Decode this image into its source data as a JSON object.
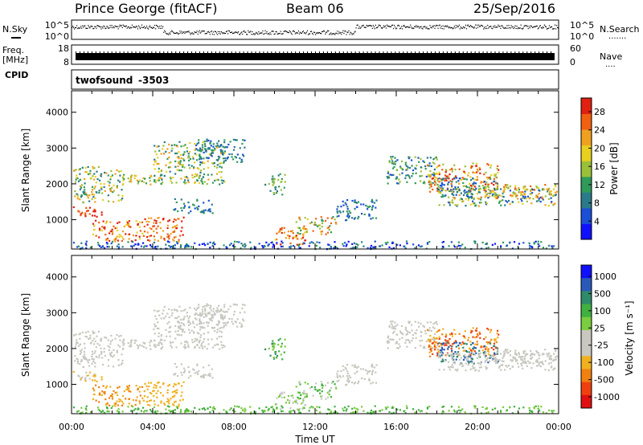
{
  "header": {
    "station": "Prince George (fitACF)",
    "beam": "Beam 06",
    "date": "25/Sep/2016"
  },
  "left_labels": {
    "nsky": "N.Sky",
    "freq_line1": "Freq.",
    "freq_line2": "[MHz]",
    "cpid": "CPID"
  },
  "right_labels": {
    "nsearch": "N.Search",
    "nsearch_dots": ".......",
    "nave": "Nave",
    "nave_dots": "...."
  },
  "noise_panel": {
    "left_ticks": [
      "10^5",
      "10^0"
    ],
    "right_ticks": [
      "10^5",
      "10^0"
    ]
  },
  "freq_panel": {
    "left_ticks": [
      "18",
      "8"
    ],
    "right_ticks": [
      "60",
      "0"
    ]
  },
  "cpid_panel": {
    "program": "twofsound",
    "id": "-3503"
  },
  "colors": {
    "power_scale": [
      "#1010ff",
      "#1a4fd6",
      "#2a7a8a",
      "#2f9a5a",
      "#9ac03a",
      "#e8d020",
      "#f0a020",
      "#f06010",
      "#e02010"
    ],
    "velocity_scale": [
      "#1010ff",
      "#2a5ab8",
      "#2f8a6a",
      "#40b040",
      "#7acc40",
      "#c8c8c0",
      "#c8c8c0",
      "#f0b020",
      "#f08010",
      "#f04010",
      "#e01010"
    ]
  },
  "chart_data": [
    {
      "type": "heatmap",
      "name": "Power",
      "xlabel": "",
      "ylabel": "Slant Range [km]",
      "x_ticks": [
        "00:00",
        "04:00",
        "08:00",
        "12:00",
        "16:00",
        "20:00",
        "00:00"
      ],
      "y_ticks": [
        "1000",
        "2000",
        "3000",
        "4000"
      ],
      "ylim": [
        180,
        4600
      ],
      "colorbar": {
        "label": "Power [dB]",
        "ticks": [
          "4",
          "8",
          "12",
          "16",
          "20",
          "24",
          "28"
        ],
        "range": [
          0,
          31
        ]
      }
    },
    {
      "type": "heatmap",
      "name": "Velocity",
      "xlabel": "Time UT",
      "ylabel": "Slant Range [km]",
      "x_ticks": [
        "00:00",
        "04:00",
        "08:00",
        "12:00",
        "16:00",
        "20:00",
        "00:00"
      ],
      "y_ticks": [
        "1000",
        "2000",
        "3000",
        "4000"
      ],
      "ylim": [
        180,
        4600
      ],
      "colorbar": {
        "label": "Velocity [m s⁻¹]",
        "ticks": [
          "1000",
          "500",
          "100",
          "25",
          "-25",
          "-100",
          "-500",
          "-1000"
        ]
      }
    }
  ]
}
